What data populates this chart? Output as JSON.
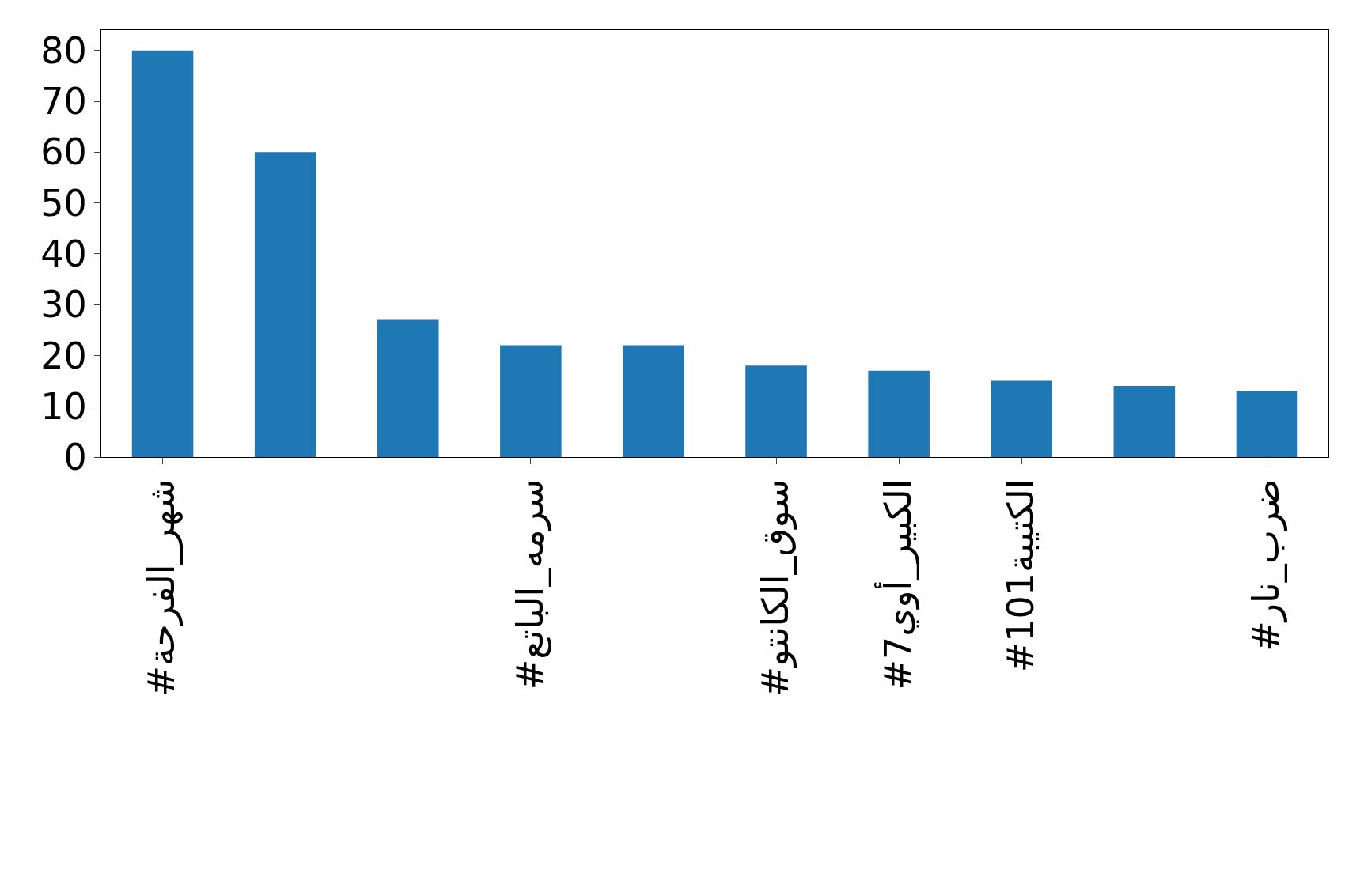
{
  "chart_data": {
    "type": "bar",
    "categories": [
      "#شهر_الفرحة",
      null,
      null,
      "#سرمه_الباتع",
      null,
      "#سوق_الكانتو",
      "#الكبير_أوي7",
      "#الكتيبة101",
      null,
      "#ضرب_نار"
    ],
    "values": [
      80,
      60,
      27,
      22,
      22,
      18,
      17,
      15,
      14,
      13
    ],
    "color": "#1f77b4",
    "ylim": [
      0,
      84
    ],
    "yticks": [
      0,
      10,
      20,
      30,
      40,
      50,
      60,
      70,
      80
    ]
  }
}
